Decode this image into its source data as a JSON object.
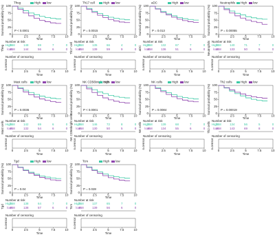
{
  "chart_data": [
    {
      "type": "line",
      "title": "Tfreg",
      "ylabel": "Survival probability (%)",
      "xlabel": "Time",
      "annotation": "P < 0.0001",
      "risk_title": "Number at risk",
      "censor_title": "Number of censoring",
      "censor_ylabel": "n.censor",
      "xlim": [
        0,
        10
      ],
      "xticks": [
        0,
        2.5,
        5,
        7.5,
        10
      ],
      "ylim": [
        0,
        100
      ],
      "yticks": [
        0,
        25,
        50,
        75,
        100
      ],
      "x": [
        0,
        1,
        2,
        3,
        4,
        5,
        6,
        7,
        8,
        9
      ],
      "series": [
        {
          "name": "High",
          "color": "#3cc9a5",
          "values": [
            100,
            93,
            84,
            76,
            70,
            64,
            60,
            57,
            55,
            55
          ],
          "at_risk": [
            258,
            148,
            69,
            7,
            0
          ]
        },
        {
          "name": "low",
          "color": "#8e44ad",
          "values": [
            100,
            89,
            76,
            66,
            57,
            50,
            45,
            41,
            39,
            39
          ],
          "at_risk": [
            258,
            144,
            56,
            6,
            0
          ]
        }
      ]
    },
    {
      "type": "line",
      "title": "Th17 cell",
      "ylabel": "Survival probability (%)",
      "xlabel": "Time",
      "annotation": "P = 0.0015",
      "risk_title": "Number at risk",
      "censor_title": "Number of censoring",
      "censor_ylabel": "n.censor",
      "xlim": [
        0,
        10
      ],
      "xticks": [
        0,
        2.5,
        5,
        7.5,
        10
      ],
      "ylim": [
        0,
        100
      ],
      "yticks": [
        0,
        25,
        50,
        75,
        100
      ],
      "x": [
        0,
        1,
        2,
        3,
        4,
        5,
        6,
        7,
        8,
        9
      ],
      "series": [
        {
          "name": "High",
          "color": "#3cc9a5",
          "values": [
            100,
            92,
            82,
            74,
            67,
            61,
            57,
            54,
            52,
            52
          ],
          "at_risk": [
            258,
            135,
            66,
            4,
            0
          ]
        },
        {
          "name": "low",
          "color": "#8e44ad",
          "values": [
            100,
            89,
            78,
            68,
            60,
            53,
            48,
            44,
            42,
            42
          ],
          "at_risk": [
            258,
            139,
            59,
            9,
            0
          ]
        }
      ]
    },
    {
      "type": "line",
      "title": "aDC",
      "ylabel": "Survival probability (%)",
      "xlabel": "Time",
      "annotation": "P = 0.013",
      "risk_title": "Number at risk",
      "censor_title": "Number of censoring",
      "censor_ylabel": "n.censor",
      "xlim": [
        0,
        10
      ],
      "xticks": [
        0,
        2.5,
        5,
        7.5,
        10
      ],
      "ylim": [
        0,
        100
      ],
      "yticks": [
        0,
        25,
        50,
        75,
        100
      ],
      "x": [
        0,
        1,
        2,
        3,
        4,
        5,
        6,
        7,
        8,
        9
      ],
      "series": [
        {
          "name": "High",
          "color": "#3cc9a5",
          "values": [
            100,
            91,
            81,
            73,
            66,
            60,
            56,
            53,
            51,
            51
          ],
          "at_risk": [
            258,
            132,
            67,
            7,
            0
          ]
        },
        {
          "name": "low",
          "color": "#8e44ad",
          "values": [
            100,
            90,
            78,
            69,
            61,
            54,
            49,
            45,
            43,
            43
          ],
          "at_risk": [
            258,
            136,
            51,
            5,
            0
          ]
        }
      ]
    },
    {
      "type": "line",
      "title": "Neutrophils",
      "ylabel": "Survival probability (%)",
      "xlabel": "Time",
      "annotation": "P = 0.00055",
      "risk_title": "Number at risk",
      "censor_title": "Number of censoring",
      "censor_ylabel": "n.censor",
      "xlim": [
        0,
        10
      ],
      "xticks": [
        0,
        2.5,
        5,
        7.5,
        10
      ],
      "ylim": [
        0,
        100
      ],
      "yticks": [
        0,
        25,
        50,
        75,
        100
      ],
      "x": [
        0,
        1,
        2,
        3,
        4,
        5,
        6,
        7,
        8,
        9
      ],
      "series": [
        {
          "name": "High",
          "color": "#3cc9a5",
          "values": [
            100,
            92,
            83,
            75,
            69,
            63,
            59,
            56,
            54,
            54
          ],
          "at_risk": [
            258,
            140,
            71,
            7,
            0
          ]
        },
        {
          "name": "low",
          "color": "#8e44ad",
          "values": [
            100,
            88,
            76,
            66,
            58,
            51,
            46,
            42,
            36,
            36
          ],
          "at_risk": [
            258,
            133,
            50,
            5,
            0
          ]
        }
      ]
    },
    {
      "type": "line",
      "title": "Mast cells",
      "ylabel": "Survival probability (%)",
      "xlabel": "Time",
      "annotation": "P = 0.0036",
      "risk_title": "Number at risk",
      "censor_title": "Number of censoring",
      "censor_ylabel": "n.censor",
      "xlim": [
        0,
        10
      ],
      "xticks": [
        0,
        2.5,
        5,
        7.5,
        10
      ],
      "ylim": [
        0,
        100
      ],
      "yticks": [
        0,
        25,
        50,
        75,
        100
      ],
      "x": [
        0,
        1,
        2,
        3,
        4,
        5,
        6,
        7,
        8,
        9
      ],
      "series": [
        {
          "name": "High",
          "color": "#3cc9a5",
          "values": [
            100,
            92,
            83,
            75,
            68,
            62,
            58,
            55,
            53,
            53
          ],
          "at_risk": [
            258,
            142,
            69,
            6,
            0
          ]
        },
        {
          "name": "low",
          "color": "#8e44ad",
          "values": [
            100,
            89,
            77,
            67,
            59,
            52,
            47,
            43,
            40,
            40
          ],
          "at_risk": [
            258,
            132,
            54,
            6,
            0
          ]
        }
      ]
    },
    {
      "type": "line",
      "title": "NK CD56bright cells",
      "ylabel": "Survival probability (%)",
      "xlabel": "Time",
      "annotation": "P < 0.0001",
      "risk_title": "Number at risk",
      "censor_title": "Number of censoring",
      "censor_ylabel": "n.censor",
      "xlim": [
        0,
        10
      ],
      "xticks": [
        0,
        2.5,
        5,
        7.5,
        10
      ],
      "ylim": [
        0,
        100
      ],
      "yticks": [
        0,
        25,
        50,
        75,
        100
      ],
      "x": [
        0,
        1,
        2,
        3,
        4,
        5,
        6,
        7,
        8,
        9
      ],
      "series": [
        {
          "name": "High",
          "color": "#3cc9a5",
          "values": [
            100,
            93,
            85,
            77,
            71,
            65,
            61,
            58,
            56,
            56
          ],
          "at_risk": [
            258,
            146,
            72,
            8,
            0
          ]
        },
        {
          "name": "low",
          "color": "#8e44ad",
          "values": [
            100,
            88,
            75,
            65,
            56,
            49,
            44,
            40,
            38,
            38
          ],
          "at_risk": [
            258,
            130,
            50,
            5,
            0
          ]
        }
      ]
    },
    {
      "type": "line",
      "title": "NK cells",
      "ylabel": "Survival probability (%)",
      "xlabel": "Time",
      "annotation": "P = 0.0084",
      "risk_title": "Number at risk",
      "censor_title": "Number of censoring",
      "censor_ylabel": "n.censor",
      "xlim": [
        0,
        10
      ],
      "xticks": [
        0,
        2.5,
        5,
        7.5,
        10
      ],
      "ylim": [
        0,
        100
      ],
      "yticks": [
        0,
        25,
        50,
        75,
        100
      ],
      "x": [
        0,
        1,
        2,
        3,
        4,
        5,
        6,
        7,
        8,
        9
      ],
      "series": [
        {
          "name": "High",
          "color": "#3cc9a5",
          "values": [
            100,
            92,
            82,
            74,
            67,
            61,
            57,
            54,
            52,
            52
          ],
          "at_risk": [
            258,
            139,
            68,
            7,
            0
          ]
        },
        {
          "name": "low",
          "color": "#8e44ad",
          "values": [
            100,
            89,
            78,
            68,
            60,
            53,
            48,
            44,
            42,
            42
          ],
          "at_risk": [
            258,
            134,
            55,
            6,
            0
          ]
        }
      ]
    },
    {
      "type": "line",
      "title": "Th2 cells",
      "ylabel": "Survival probability (%)",
      "xlabel": "Time",
      "annotation": "P = 0.00019",
      "risk_title": "Number at risk",
      "censor_title": "Number of censoring",
      "censor_ylabel": "n.censor",
      "xlim": [
        0,
        10
      ],
      "xticks": [
        0,
        2.5,
        5,
        7.5,
        10
      ],
      "ylim": [
        0,
        100
      ],
      "yticks": [
        0,
        25,
        50,
        75,
        100
      ],
      "x": [
        0,
        1,
        2,
        3,
        4,
        5,
        6,
        7,
        8,
        9
      ],
      "series": [
        {
          "name": "High",
          "color": "#3cc9a5",
          "values": [
            100,
            91,
            80,
            71,
            63,
            56,
            51,
            47,
            45,
            45
          ],
          "at_risk": [
            258,
            134,
            56,
            5,
            0
          ]
        },
        {
          "name": "low",
          "color": "#8e44ad",
          "values": [
            100,
            92,
            84,
            76,
            70,
            64,
            60,
            57,
            55,
            55
          ],
          "at_risk": [
            258,
            143,
            69,
            8,
            0
          ]
        }
      ]
    },
    {
      "type": "line",
      "title": "Tgd",
      "ylabel": "Survival probability (%)",
      "xlabel": "Time",
      "annotation": "P = 0.04",
      "risk_title": "Number at risk",
      "censor_title": "Number of censoring",
      "censor_ylabel": "n.censor",
      "xlim": [
        0,
        10
      ],
      "xticks": [
        0,
        2.5,
        5,
        7.5,
        10
      ],
      "ylim": [
        0,
        100
      ],
      "yticks": [
        0,
        25,
        50,
        75,
        100
      ],
      "x": [
        0,
        1,
        2,
        3,
        4,
        5,
        6,
        7,
        8,
        9
      ],
      "series": [
        {
          "name": "High",
          "color": "#3cc9a5",
          "values": [
            100,
            91,
            81,
            73,
            66,
            60,
            56,
            53,
            51,
            51
          ],
          "at_risk": [
            258,
            138,
            64,
            7,
            0
          ]
        },
        {
          "name": "low",
          "color": "#8e44ad",
          "values": [
            100,
            90,
            79,
            70,
            62,
            55,
            50,
            46,
            44,
            44
          ],
          "at_risk": [
            258,
            138,
            57,
            6,
            0
          ]
        }
      ]
    },
    {
      "type": "line",
      "title": "Tcm",
      "ylabel": "Survival probability (%)",
      "xlabel": "Time",
      "annotation": "P = 0.028",
      "risk_title": "Number at risk",
      "censor_title": "Number of censoring",
      "censor_ylabel": "n.censor",
      "xlim": [
        0,
        10
      ],
      "xticks": [
        0,
        2.5,
        5,
        7.5,
        10
      ],
      "ylim": [
        0,
        100
      ],
      "yticks": [
        0,
        25,
        50,
        75,
        100
      ],
      "x": [
        0,
        1,
        2,
        3,
        4,
        5,
        6,
        7,
        8,
        9
      ],
      "series": [
        {
          "name": "High",
          "color": "#3cc9a5",
          "values": [
            100,
            92,
            82,
            74,
            67,
            61,
            57,
            54,
            52,
            52
          ],
          "at_risk": [
            258,
            137,
            65,
            7,
            0
          ]
        },
        {
          "name": "low",
          "color": "#8e44ad",
          "values": [
            100,
            90,
            79,
            69,
            61,
            54,
            49,
            45,
            43,
            43
          ],
          "at_risk": [
            258,
            139,
            56,
            6,
            0
          ]
        }
      ]
    }
  ]
}
